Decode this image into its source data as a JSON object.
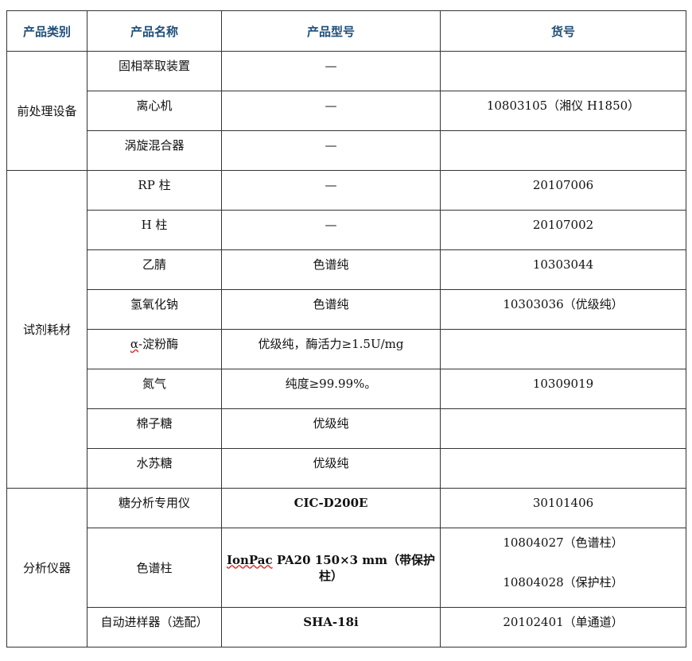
{
  "headers": [
    "产品类别",
    "产品名称",
    "产品型号",
    "货号"
  ],
  "groups": [
    {
      "category": "前处理设备",
      "rows": [
        {
          "name": "固相萃取装置",
          "model": "—",
          "code": ""
        },
        {
          "name": "离心机",
          "model": "—",
          "code": "10803105（湘仪 H1850）"
        },
        {
          "name": "涡旋混合器",
          "model": "—",
          "code": ""
        }
      ]
    },
    {
      "category": "试剂耗材",
      "rows": [
        {
          "name": "RP 柱",
          "model": "—",
          "code": "20107006"
        },
        {
          "name": "H 柱",
          "model": "—",
          "code": "20107002"
        },
        {
          "name": "乙腈",
          "model": "色谱纯",
          "code": "10303044"
        },
        {
          "name": "氢氧化钠",
          "model": "色谱纯",
          "code": "10303036（优级纯）"
        },
        {
          "name_prefix": "α",
          "name": "-淀粉酶",
          "model": "优级纯，酶活力≥1.5U/mg",
          "code": ""
        },
        {
          "name": "氮气",
          "model": "纯度≥99.99%。",
          "code": "10309019"
        },
        {
          "name": "棉子糖",
          "model": "优级纯",
          "code": ""
        },
        {
          "name": "水苏糖",
          "model": "优级纯",
          "code": ""
        }
      ]
    },
    {
      "category": "分析仪器",
      "rows": [
        {
          "name": "糖分析专用仪",
          "model": "CIC-D200E",
          "code": "30101406"
        },
        {
          "name": "色谱柱",
          "model_prefix": "IonPac",
          "model": " PA20 150×3 mm（带保护柱）",
          "codes": [
            "10804027（色谱柱）",
            "10804028（保护柱）"
          ]
        },
        {
          "name": "自动进样器（选配）",
          "model": "SHA-18i",
          "code": "20102401（单通道）"
        }
      ]
    }
  ]
}
